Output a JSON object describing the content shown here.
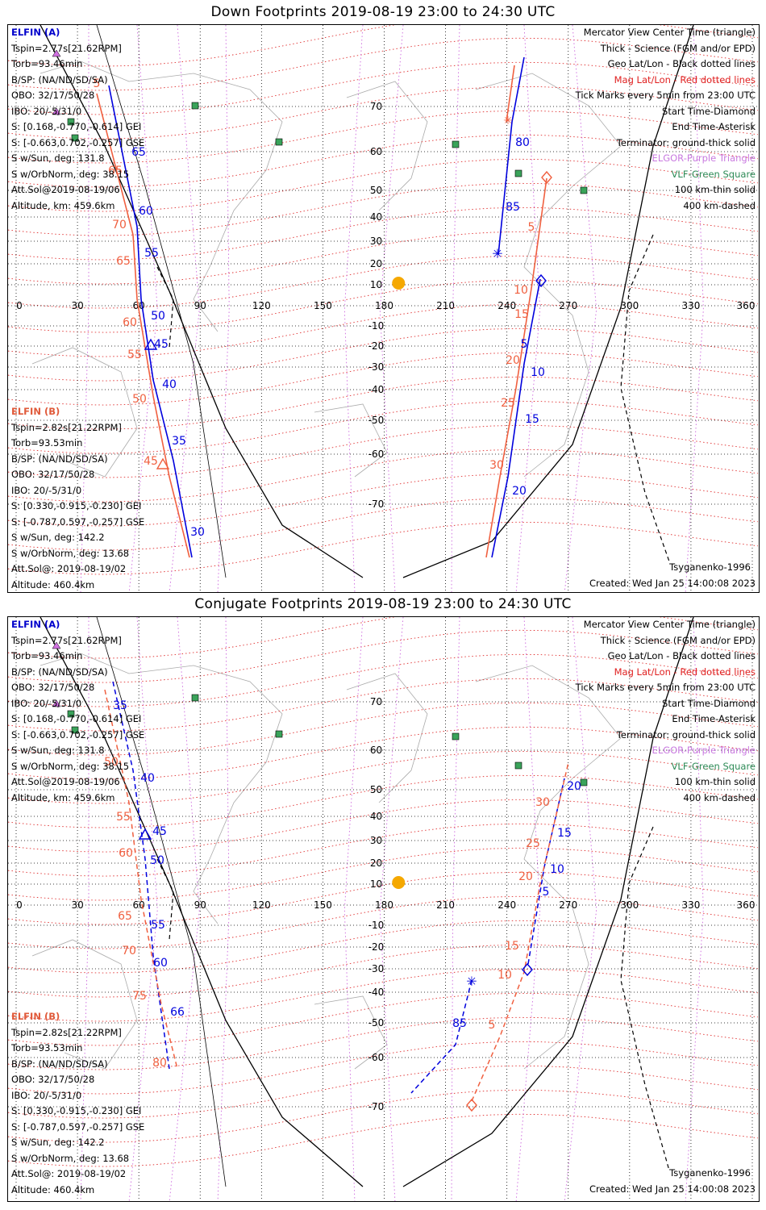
{
  "panels": [
    {
      "title": "Down Footprints 2019-08-19 23:00 to 24:30 UTC",
      "elfin_a": {
        "header": "ELFIN (A)",
        "lines": [
          "Tspin=2.77s[21.62RPM]",
          "Torb=93.46min",
          "B/SP: (NA/ND/SD/SA)",
          "OBO: 32/17/50/28",
          "IBO: 20/-5/31/0",
          "S: [0.168,-0.770,-0.614] GEI",
          "S: [-0.663,0.702,-0.257] GSE",
          "S w/Sun, deg: 131.8",
          "S w/OrbNorm, deg: 38.15",
          "Att.Sol@2019-08-19/06",
          "Altitude, km: 459.6km"
        ]
      },
      "elfin_b": {
        "header": "ELFIN (B)",
        "lines": [
          "Tspin=2.82s[21.22RPM]",
          "Torb=93.53min",
          "B/SP: (NA/ND/SD/SA)",
          "OBO: 32/17/50/28",
          "IBO: 20/-5/31/0",
          "S: [0.330,-0.915,-0.230] GEI",
          "S: [-0.787,0.597,-0.257] GSE",
          "S w/Sun, deg: 142.2",
          "S w/OrbNorm, deg: 13.68",
          "Att.Sol@: 2019-08-19/02",
          "Altitude: 460.4km"
        ]
      },
      "legend": [
        {
          "text": "Mercator View Center Time (triangle)",
          "color": "black"
        },
        {
          "text": "Thick - Science (FGM and/or EPD)",
          "color": "black"
        },
        {
          "text": "Geo Lat/Lon - Black dotted lines",
          "color": "black"
        },
        {
          "text": "Mag Lat/Lon - Red dotted lines",
          "color": "red"
        },
        {
          "text": "Tick Marks every 5min from 23:00 UTC",
          "color": "black"
        },
        {
          "text": "Start Time-Diamond",
          "color": "black"
        },
        {
          "text": "End Time-Asterisk",
          "color": "black"
        },
        {
          "text": "Terminator: ground-thick solid",
          "color": "black"
        },
        {
          "text": "ELGOR-Purple Triangle",
          "color": "purple"
        },
        {
          "text": "VLF-Green Square",
          "color": "green"
        },
        {
          "text": "100 km-thin solid",
          "color": "black"
        },
        {
          "text": "400 km-dashed",
          "color": "black"
        }
      ],
      "model": "Tsyganenko-1996",
      "created": "Created: Wed Jan 25 14:00:08 2023",
      "lon_labels": [
        "0",
        "30",
        "60",
        "90",
        "120",
        "150",
        "180",
        "210",
        "240",
        "270",
        "300",
        "330",
        "360"
      ],
      "lat_labels": [
        "70",
        "60",
        "50",
        "40",
        "30",
        "20",
        "10",
        "-10",
        "-20",
        "-30",
        "-40",
        "-50",
        "-60",
        "-70"
      ],
      "track_a_ticks": [
        "65",
        "60",
        "55",
        "50",
        "45",
        "40",
        "35",
        "30",
        "80",
        "85",
        "5",
        "10",
        "15",
        "20"
      ],
      "track_b_ticks": [
        "60",
        "5",
        "65",
        "70",
        "65",
        "60",
        "55",
        "50",
        "45",
        "5",
        "10",
        "15",
        "20",
        "25",
        "30"
      ]
    },
    {
      "title": "Conjugate Footprints 2019-08-19 23:00 to 24:30 UTC",
      "elfin_a": {
        "header": "ELFIN (A)",
        "lines": [
          "Tspin=2.77s[21.62RPM]",
          "Torb=93.46min",
          "B/SP: (NA/ND/SD/SA)",
          "OBO: 32/17/50/28",
          "IBO: 20/-5/31/0",
          "S: [0.168,-0.770,-0.614] GEI",
          "S: [-0.663,0.702,-0.257] GSE",
          "S w/Sun, deg: 131.8",
          "S w/OrbNorm, deg: 38.15",
          "Att.Sol@2019-08-19/06",
          "Altitude, km: 459.6km"
        ]
      },
      "elfin_b": {
        "header": "ELFIN (B)",
        "lines": [
          "Tspin=2.82s[21.22RPM]",
          "Torb=93.53min",
          "B/SP: (NA/ND/SD/SA)",
          "OBO: 32/17/50/28",
          "IBO: 20/-5/31/0",
          "S: [0.330,-0.915,-0.230] GEI",
          "S: [-0.787,0.597,-0.257] GSE",
          "S w/Sun, deg: 142.2",
          "S w/OrbNorm, deg: 13.68",
          "Att.Sol@: 2019-08-19/02",
          "Altitude: 460.4km"
        ]
      },
      "legend": [
        {
          "text": "Mercator View Center Time (triangle)",
          "color": "black"
        },
        {
          "text": "Thick - Science (FGM and/or EPD)",
          "color": "black"
        },
        {
          "text": "Geo Lat/Lon - Black dotted lines",
          "color": "black"
        },
        {
          "text": "Mag Lat/Lon - Red dotted lines",
          "color": "red"
        },
        {
          "text": "Tick Marks every 5min from 23:00 UTC",
          "color": "black"
        },
        {
          "text": "Start Time-Diamond",
          "color": "black"
        },
        {
          "text": "End Time-Asterisk",
          "color": "black"
        },
        {
          "text": "Terminator: ground-thick solid",
          "color": "black"
        },
        {
          "text": "ELGOR-Purple Triangle",
          "color": "purple"
        },
        {
          "text": "VLF-Green Square",
          "color": "green"
        },
        {
          "text": "100 km-thin solid",
          "color": "black"
        },
        {
          "text": "400 km-dashed",
          "color": "black"
        }
      ],
      "model": "Tsyganenko-1996",
      "created": "Created: Wed Jan 25 14:00:08 2023",
      "lon_labels": [
        "0",
        "30",
        "60",
        "90",
        "120",
        "150",
        "180",
        "210",
        "240",
        "270",
        "300",
        "330",
        "360"
      ],
      "lat_labels": [
        "70",
        "60",
        "50",
        "40",
        "30",
        "20",
        "10",
        "-10",
        "-20",
        "-30",
        "-40",
        "-50",
        "-60",
        "-70"
      ],
      "track_a_ticks": [
        "35",
        "40",
        "45",
        "50",
        "55",
        "60",
        "66",
        "85",
        "20",
        "15",
        "10",
        "5"
      ],
      "track_b_ticks": [
        "50",
        "55",
        "60",
        "65",
        "70",
        "75",
        "80",
        "30",
        "25",
        "20",
        "15",
        "10",
        "5"
      ]
    }
  ],
  "colors": {
    "elfin_a": "#0000dd",
    "elfin_b": "#f06040",
    "mag_grid": "#e03030",
    "geo_grid": "#000000",
    "elgor": "#d070e0",
    "vlf": "#3aa35a",
    "sun": "#f5a800",
    "coast": "#aaaaaa"
  },
  "icons": [
    "start-diamond-icon",
    "end-asterisk-icon",
    "center-triangle-icon",
    "sun-icon",
    "vlf-square-icon",
    "elgor-triangle-icon"
  ]
}
